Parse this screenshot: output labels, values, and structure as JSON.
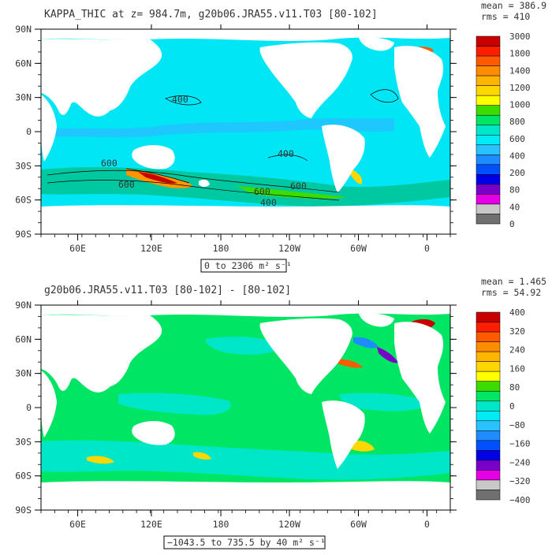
{
  "chart_data": [
    {
      "type": "heatmap",
      "title": "KAPPA_THIC at z= 984.7m, g20b06.JRA55.v11.T03 [80-102]",
      "mean_label": "mean = 386.9",
      "rms_label": "rms = 410",
      "range_label": "0 to 2306 m² s⁻¹",
      "x_ticks": [
        "60E",
        "120E",
        "180",
        "120W",
        "60W",
        "0"
      ],
      "y_ticks": [
        "90N",
        "60N",
        "30N",
        "0",
        "30S",
        "60S",
        "90S"
      ],
      "colorbar_labels": [
        "3000",
        "1800",
        "1400",
        "1200",
        "1000",
        "800",
        "600",
        "400",
        "200",
        "80",
        "40",
        "0"
      ],
      "colors": [
        "#c80000",
        "#ff1e00",
        "#ff5a00",
        "#ff8c00",
        "#ffb400",
        "#ffd700",
        "#ffff00",
        "#3cdc00",
        "#00e664",
        "#00e6c8",
        "#00ebf5",
        "#28c3ff",
        "#1e8cff",
        "#0050ff",
        "#0000e6",
        "#7800c8",
        "#e600e6",
        "#c8c8c8",
        "#707070"
      ],
      "contour_labels": [
        "400",
        "600",
        "400",
        "600",
        "600",
        "600",
        "400"
      ]
    },
    {
      "type": "heatmap",
      "title": "g20b06.JRA55.v11.T03 [80-102] - [80-102]",
      "mean_label": "mean = 1.465",
      "rms_label": "rms = 54.92",
      "range_label": "−1043.5 to 735.5 by 40 m² s⁻¹",
      "x_ticks": [
        "60E",
        "120E",
        "180",
        "120W",
        "60W",
        "0"
      ],
      "y_ticks": [
        "90N",
        "60N",
        "30N",
        "0",
        "30S",
        "60S",
        "90S"
      ],
      "colorbar_labels": [
        "400",
        "320",
        "240",
        "160",
        "80",
        "0",
        "−80",
        "−160",
        "−240",
        "−320",
        "−400"
      ],
      "colors": [
        "#c80000",
        "#ff1e00",
        "#ff5a00",
        "#ff8c00",
        "#ffb400",
        "#ffd700",
        "#ffff00",
        "#3cdc00",
        "#00e664",
        "#00e6c8",
        "#00ebf5",
        "#28c3ff",
        "#1e8cff",
        "#0050ff",
        "#0000e6",
        "#7800c8",
        "#e600e6",
        "#c8c8c8",
        "#707070"
      ]
    }
  ]
}
